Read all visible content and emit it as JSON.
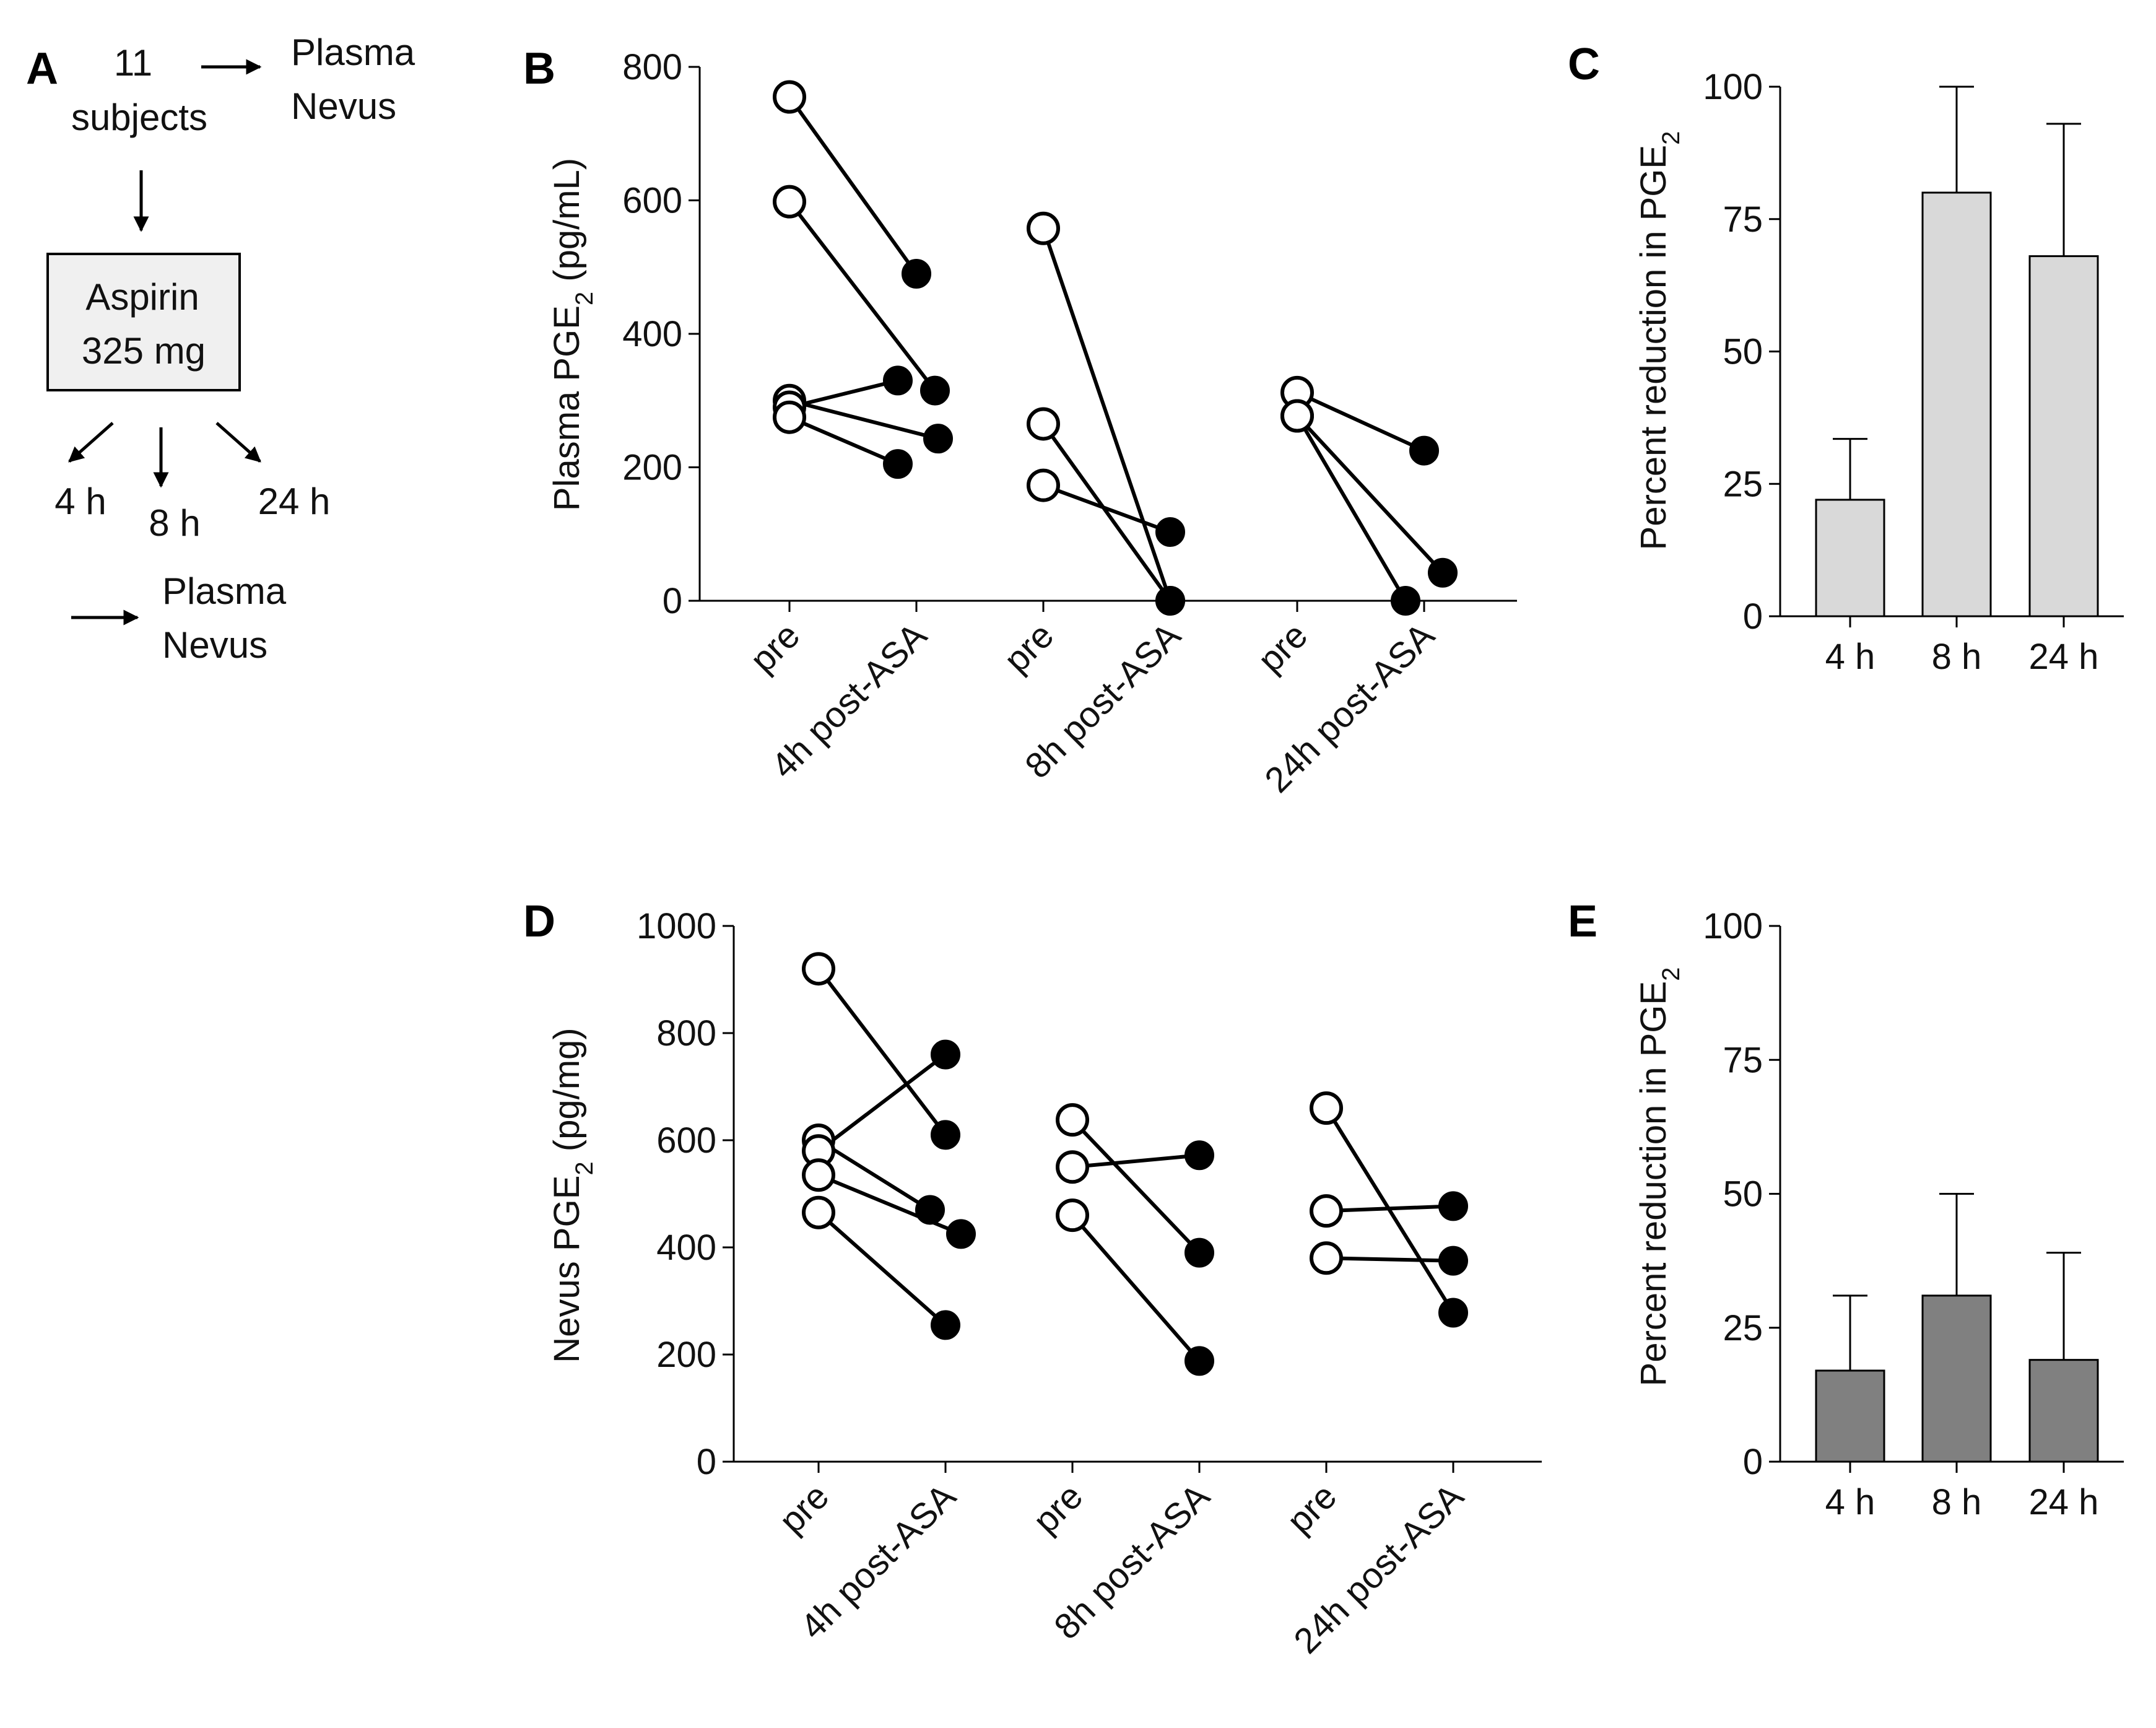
{
  "colors": {
    "light_bar": "#d9d9d9",
    "dark_bar": "#808080",
    "stroke": "#000000",
    "open_marker": "#ffffff",
    "filled_marker": "#000000"
  },
  "panel_a": {
    "letter": "A",
    "count": "11",
    "subjects": "subjects",
    "plasma_top": "Plasma",
    "nevus_top": "Nevus",
    "drug_line1": "Aspirin",
    "drug_line2": "325 mg",
    "time_4": "4 h",
    "time_8": "8 h",
    "time_24": "24 h",
    "plasma_bottom": "Plasma",
    "nevus_bottom": "Nevus"
  },
  "chart_data": [
    {
      "panel": "B",
      "type": "scatter",
      "ylabel": "Plasma PGE2 (pg/mL)",
      "ylabel_main": "Plasma PGE",
      "ylabel_sub": "2",
      "ylabel_tail": " (pg/mL)",
      "ylim": [
        0,
        800
      ],
      "yticks": [
        "0",
        "200",
        "400",
        "600",
        "800"
      ],
      "categories": [
        "pre",
        "4h post-ASA",
        "pre",
        "8h post-ASA",
        "pre",
        "24h post-ASA"
      ],
      "pairs": [
        {
          "group": "4h",
          "pre": 755,
          "post": 490
        },
        {
          "group": "4h",
          "pre": 598,
          "post": 315
        },
        {
          "group": "4h",
          "pre": 300,
          "post": 243
        },
        {
          "group": "4h",
          "pre": 290,
          "post": 330
        },
        {
          "group": "4h",
          "pre": 275,
          "post": 205
        },
        {
          "group": "8h",
          "pre": 558,
          "post": 0
        },
        {
          "group": "8h",
          "pre": 265,
          "post": 0
        },
        {
          "group": "8h",
          "pre": 173,
          "post": 103
        },
        {
          "group": "24h",
          "pre": 312,
          "post": 225
        },
        {
          "group": "24h",
          "pre": 277,
          "post": 42
        },
        {
          "group": "24h",
          "pre": 277,
          "post": 0
        }
      ]
    },
    {
      "panel": "C",
      "type": "bar",
      "ylabel": "Percent reduction in PGE2",
      "ylabel_main": "Percent reduction in PGE",
      "ylabel_sub": "2",
      "ylim": [
        0,
        100
      ],
      "yticks": [
        "0",
        "25",
        "50",
        "75",
        "100"
      ],
      "categories": [
        "4 h",
        "8 h",
        "24 h"
      ],
      "values": [
        22,
        80,
        68
      ],
      "errors": [
        11.5,
        20,
        25
      ],
      "color": "#d9d9d9"
    },
    {
      "panel": "D",
      "type": "scatter",
      "ylabel": "Nevus PGE2 (pg/mg)",
      "ylabel_main": "Nevus PGE",
      "ylabel_sub": "2",
      "ylabel_tail": " (pg/mg)",
      "ylim": [
        0,
        1000
      ],
      "yticks": [
        "0",
        "200",
        "400",
        "600",
        "800",
        "1000"
      ],
      "categories": [
        "pre",
        "4h post-ASA",
        "pre",
        "8h post-ASA",
        "pre",
        "24h post-ASA"
      ],
      "pairs": [
        {
          "group": "4h",
          "pre": 920,
          "post": 610
        },
        {
          "group": "4h",
          "pre": 600,
          "post": 470
        },
        {
          "group": "4h",
          "pre": 580,
          "post": 760
        },
        {
          "group": "4h",
          "pre": 535,
          "post": 425
        },
        {
          "group": "4h",
          "pre": 465,
          "post": 255
        },
        {
          "group": "8h",
          "pre": 638,
          "post": 390
        },
        {
          "group": "8h",
          "pre": 550,
          "post": 572
        },
        {
          "group": "8h",
          "pre": 460,
          "post": 188
        },
        {
          "group": "24h",
          "pre": 660,
          "post": 278
        },
        {
          "group": "24h",
          "pre": 468,
          "post": 477
        },
        {
          "group": "24h",
          "pre": 380,
          "post": 375
        }
      ]
    },
    {
      "panel": "E",
      "type": "bar",
      "ylabel": "Percent reduction in PGE2",
      "ylabel_main": "Percent reduction in PGE",
      "ylabel_sub": "2",
      "ylim": [
        0,
        100
      ],
      "yticks": [
        "0",
        "25",
        "50",
        "75",
        "100"
      ],
      "categories": [
        "4 h",
        "8 h",
        "24 h"
      ],
      "values": [
        17,
        31,
        19
      ],
      "errors": [
        14,
        19,
        20
      ],
      "color": "#808080"
    }
  ]
}
